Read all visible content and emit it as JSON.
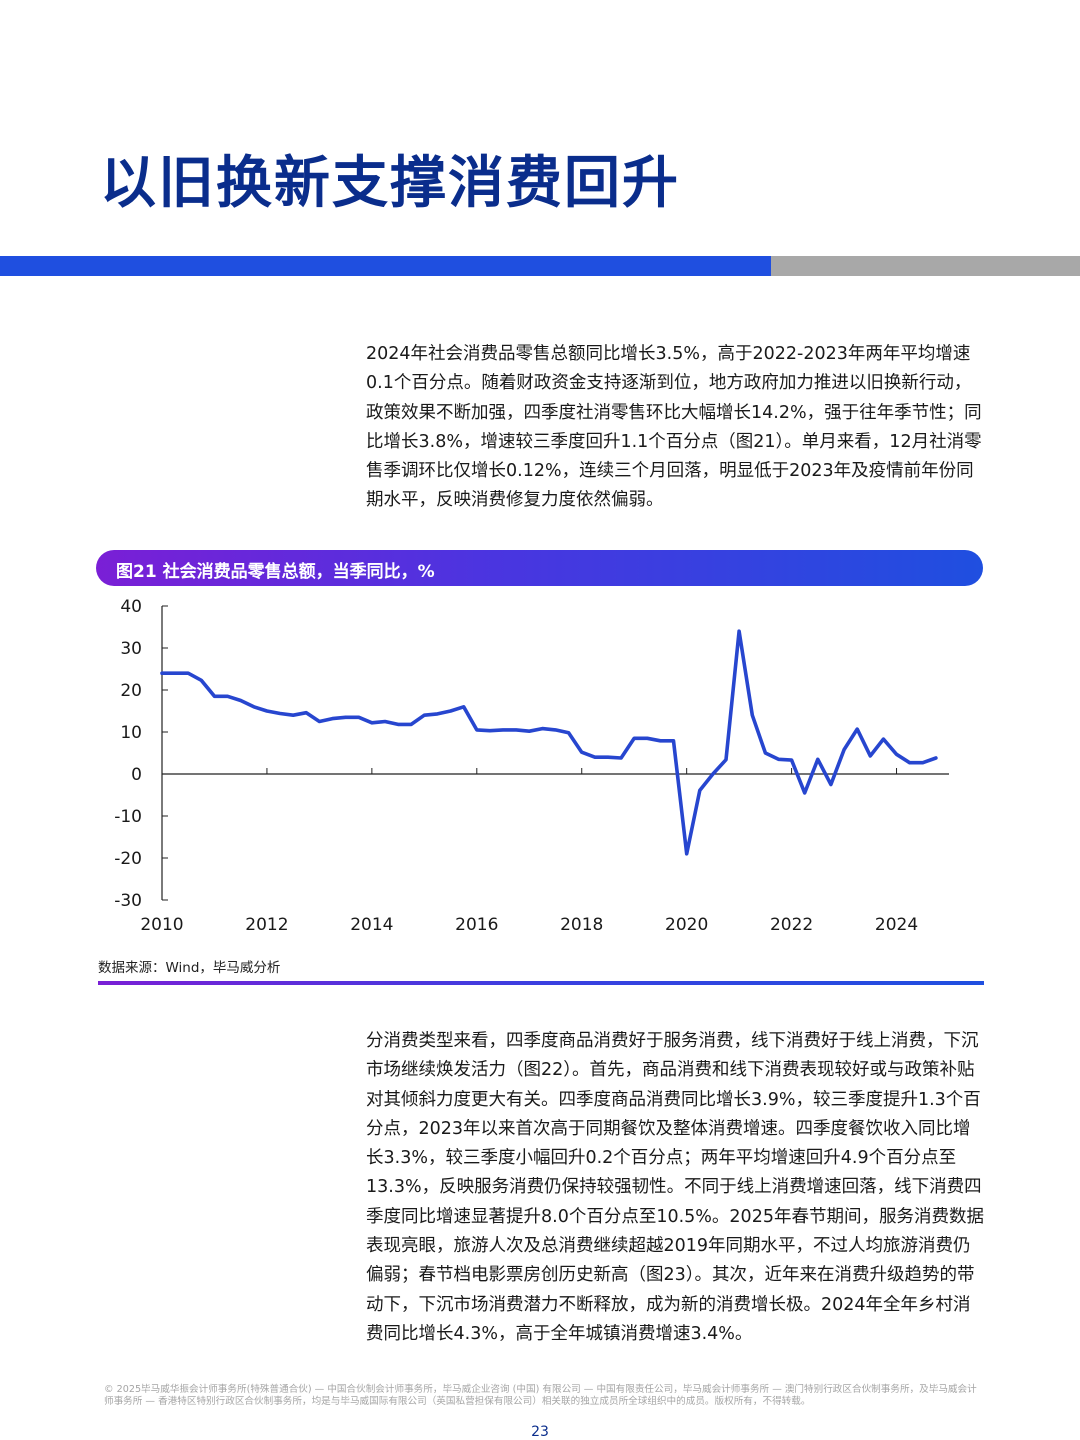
{
  "page": {
    "title": "以旧换新支撑消费回升",
    "paragraph1": "2024年社会消费品零售总额同比增长3.5%，高于2022-2023年两年平均增速0.1个百分点。随着财政资金支持逐渐到位，地方政府加力推进以旧换新行动，政策效果不断加强，四季度社消零售环比大幅增长14.2%，强于往年季节性；同比增长3.8%，增速较三季度回升1.1个百分点（图21）。单月来看，12月社消零售季调环比仅增长0.12%，连续三个月回落，明显低于2023年及疫情前年份同期水平，反映消费修复力度依然偏弱。",
    "paragraph2": "分消费类型来看，四季度商品消费好于服务消费，线下消费好于线上消费，下沉市场继续焕发活力（图22）。首先，商品消费和线下消费表现较好或与政策补贴对其倾斜力度更大有关。四季度商品消费同比增长3.9%，较三季度提升1.3个百分点，2023年以来首次高于同期餐饮及整体消费增速。四季度餐饮收入同比增长3.3%，较三季度小幅回升0.2个百分点；两年平均增速回升4.9个百分点至13.3%，反映服务消费仍保持较强韧性。不同于线上消费增速回落，线下消费四季度同比增速显著提升8.0个百分点至10.5%。2025年春节期间，服务消费数据表现亮眼，旅游人次及总消费继续超越2019年同期水平，不过人均旅游消费仍偏弱；春节档电影票房创历史新高（图23）。其次，近年来在消费升级趋势的带动下，下沉市场消费潜力不断释放，成为新的消费增长极。2024年全年乡村消费同比增长4.3%，高于全年城镇消费增速3.4%。",
    "figure_title": "图21 社会消费品零售总额，当季同比，%",
    "source": "数据来源：Wind，毕马威分析",
    "footer": "© 2025毕马威华振会计师事务所(特殊普通合伙) — 中国合伙制会计师事务所，毕马威企业咨询 (中国) 有限公司 — 中国有限责任公司，毕马威会计师事务所 — 澳门特别行政区合伙制事务所，及毕马威会计师事务所 — 香港特区特别行政区合伙制事务所，均是与毕马威国际有限公司（英国私营担保有限公司）相关联的独立成员所全球组织中的成员。版权所有，不得转载。",
    "page_number": "23"
  },
  "colors": {
    "title": "#0a2d8c",
    "accent_blue": "#1f4fe0",
    "accent_purple": "#7a1fd6",
    "grey_bar": "#a8a8a8"
  },
  "chart_data": {
    "type": "line",
    "title": "图21 社会消费品零售总额，当季同比，%",
    "xlabel": "",
    "ylabel": "",
    "ylim": [
      -30,
      40
    ],
    "xlim": [
      2010,
      2025
    ],
    "yticks": [
      "40",
      "30",
      "20",
      "10",
      "0",
      "-10",
      "-20",
      "-30"
    ],
    "xticks": [
      "2010",
      "2012",
      "2014",
      "2016",
      "2018",
      "2020",
      "2022",
      "2024"
    ],
    "grid": false,
    "series": [
      {
        "color": "#2746cf",
        "x": [
          2010.0,
          2010.25,
          2010.5,
          2010.75,
          2011.0,
          2011.25,
          2011.5,
          2011.75,
          2012.0,
          2012.25,
          2012.5,
          2012.75,
          2013.0,
          2013.25,
          2013.5,
          2013.75,
          2014.0,
          2014.25,
          2014.5,
          2014.75,
          2015.0,
          2015.25,
          2015.5,
          2015.75,
          2016.0,
          2016.25,
          2016.5,
          2016.75,
          2017.0,
          2017.25,
          2017.5,
          2017.75,
          2018.0,
          2018.25,
          2018.5,
          2018.75,
          2019.0,
          2019.25,
          2019.5,
          2019.75,
          2020.0,
          2020.25,
          2020.5,
          2020.75,
          2021.0,
          2021.25,
          2021.5,
          2021.75,
          2022.0,
          2022.25,
          2022.5,
          2022.75,
          2023.0,
          2023.25,
          2023.5,
          2023.75,
          2024.0,
          2024.25,
          2024.5,
          2024.75
        ],
        "values": [
          24.0,
          24.0,
          24.0,
          22.3,
          18.5,
          18.5,
          17.5,
          16.0,
          15.0,
          14.4,
          14.0,
          14.6,
          12.5,
          13.2,
          13.5,
          13.5,
          12.2,
          12.5,
          11.8,
          11.8,
          14.0,
          14.3,
          15.0,
          16.0,
          10.5,
          10.3,
          10.5,
          10.5,
          10.2,
          10.8,
          10.5,
          9.8,
          5.2,
          4.0,
          4.0,
          3.8,
          8.5,
          8.5,
          7.9,
          7.9,
          -19.0,
          -3.9,
          0.0,
          3.4,
          34.0,
          14.0,
          5.0,
          3.5,
          3.3,
          -4.5,
          3.5,
          -2.5,
          5.8,
          10.7,
          4.3,
          8.3,
          4.7,
          2.7,
          2.7,
          3.8
        ]
      }
    ]
  }
}
